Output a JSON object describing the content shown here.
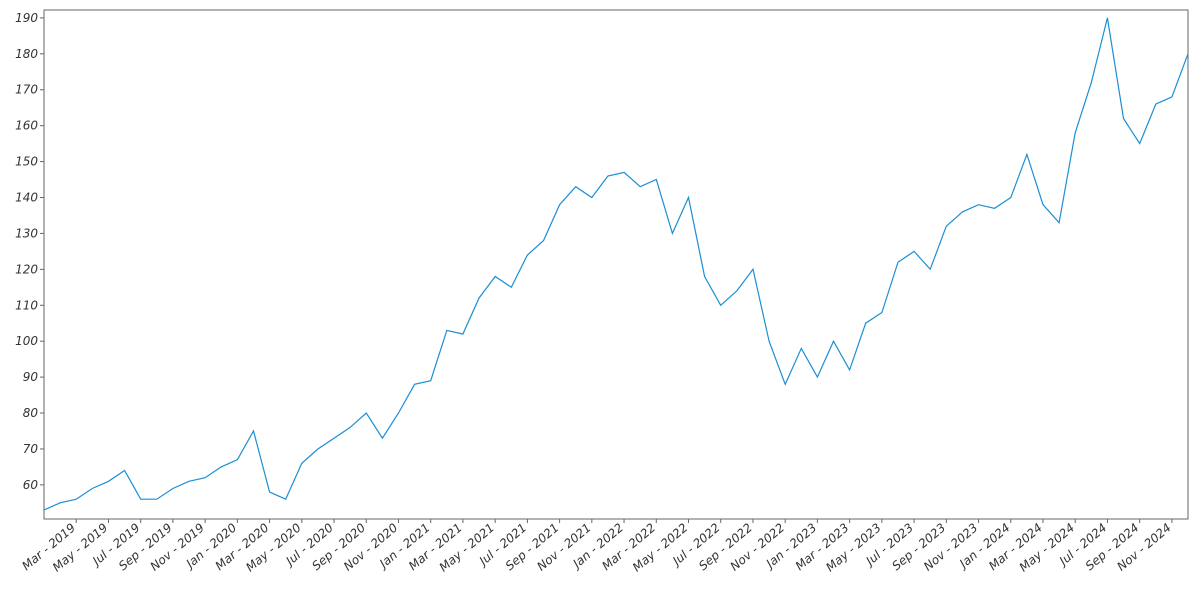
{
  "chart_data": {
    "type": "line",
    "x": [
      "2019-01",
      "2019-02",
      "2019-03",
      "2019-04",
      "2019-05",
      "2019-06",
      "2019-07",
      "2019-08",
      "2019-09",
      "2019-10",
      "2019-11",
      "2019-12",
      "2020-01",
      "2020-02",
      "2020-03",
      "2020-04",
      "2020-05",
      "2020-06",
      "2020-07",
      "2020-08",
      "2020-09",
      "2020-10",
      "2020-11",
      "2020-12",
      "2021-01",
      "2021-02",
      "2021-03",
      "2021-04",
      "2021-05",
      "2021-06",
      "2021-07",
      "2021-08",
      "2021-09",
      "2021-10",
      "2021-11",
      "2021-12",
      "2022-01",
      "2022-02",
      "2022-03",
      "2022-04",
      "2022-05",
      "2022-06",
      "2022-07",
      "2022-08",
      "2022-09",
      "2022-10",
      "2022-11",
      "2022-12",
      "2023-01",
      "2023-02",
      "2023-03",
      "2023-04",
      "2023-05",
      "2023-06",
      "2023-07",
      "2023-08",
      "2023-09",
      "2023-10",
      "2023-11",
      "2023-12",
      "2024-01",
      "2024-02",
      "2024-03",
      "2024-04",
      "2024-05",
      "2024-06",
      "2024-07",
      "2024-08",
      "2024-09",
      "2024-10",
      "2024-11",
      "2024-12"
    ],
    "series": [
      {
        "color": "#1a8fd4",
        "values": [
          53,
          55,
          56,
          59,
          61,
          64,
          56,
          56,
          59,
          61,
          62,
          65,
          67,
          75,
          58,
          56,
          66,
          70,
          73,
          76,
          80,
          73,
          80,
          88,
          89,
          103,
          102,
          112,
          118,
          115,
          124,
          128,
          138,
          143,
          140,
          146,
          147,
          143,
          145,
          130,
          140,
          118,
          110,
          114,
          120,
          100,
          88,
          98,
          90,
          100,
          92,
          105,
          108,
          122,
          125,
          120,
          132,
          136,
          138,
          137,
          140,
          152,
          138,
          133,
          158,
          172,
          190,
          162,
          155,
          166,
          168,
          180
        ]
      }
    ],
    "xlim": [
      "2019-01",
      "2024-12"
    ],
    "ylim": [
      50.5,
      192.2
    ],
    "yticks": [
      60,
      70,
      80,
      90,
      100,
      110,
      120,
      130,
      140,
      150,
      160,
      170,
      180,
      190
    ],
    "xticks": [
      {
        "value": "2019-03",
        "label": "Mar - 2019"
      },
      {
        "value": "2019-05",
        "label": "May - 2019"
      },
      {
        "value": "2019-07",
        "label": "Jul - 2019"
      },
      {
        "value": "2019-09",
        "label": "Sep - 2019"
      },
      {
        "value": "2019-11",
        "label": "Nov - 2019"
      },
      {
        "value": "2020-01",
        "label": "Jan - 2020"
      },
      {
        "value": "2020-03",
        "label": "Mar - 2020"
      },
      {
        "value": "2020-05",
        "label": "May - 2020"
      },
      {
        "value": "2020-07",
        "label": "Jul - 2020"
      },
      {
        "value": "2020-09",
        "label": "Sep - 2020"
      },
      {
        "value": "2020-11",
        "label": "Nov - 2020"
      },
      {
        "value": "2021-01",
        "label": "Jan - 2021"
      },
      {
        "value": "2021-03",
        "label": "Mar - 2021"
      },
      {
        "value": "2021-05",
        "label": "May - 2021"
      },
      {
        "value": "2021-07",
        "label": "Jul - 2021"
      },
      {
        "value": "2021-09",
        "label": "Sep - 2021"
      },
      {
        "value": "2021-11",
        "label": "Nov - 2021"
      },
      {
        "value": "2022-01",
        "label": "Jan - 2022"
      },
      {
        "value": "2022-03",
        "label": "Mar - 2022"
      },
      {
        "value": "2022-05",
        "label": "May - 2022"
      },
      {
        "value": "2022-07",
        "label": "Jul - 2022"
      },
      {
        "value": "2022-09",
        "label": "Sep - 2022"
      },
      {
        "value": "2022-11",
        "label": "Nov - 2022"
      },
      {
        "value": "2023-01",
        "label": "Jan - 2023"
      },
      {
        "value": "2023-03",
        "label": "Mar - 2023"
      },
      {
        "value": "2023-05",
        "label": "May - 2023"
      },
      {
        "value": "2023-07",
        "label": "Jul - 2023"
      },
      {
        "value": "2023-09",
        "label": "Sep - 2023"
      },
      {
        "value": "2023-11",
        "label": "Nov - 2023"
      },
      {
        "value": "2024-01",
        "label": "Jan - 2024"
      },
      {
        "value": "2024-03",
        "label": "Mar - 2024"
      },
      {
        "value": "2024-05",
        "label": "May - 2024"
      },
      {
        "value": "2024-07",
        "label": "Jul - 2024"
      },
      {
        "value": "2024-09",
        "label": "Sep - 2024"
      },
      {
        "value": "2024-11",
        "label": "Nov - 2024"
      }
    ],
    "grid": false
  }
}
